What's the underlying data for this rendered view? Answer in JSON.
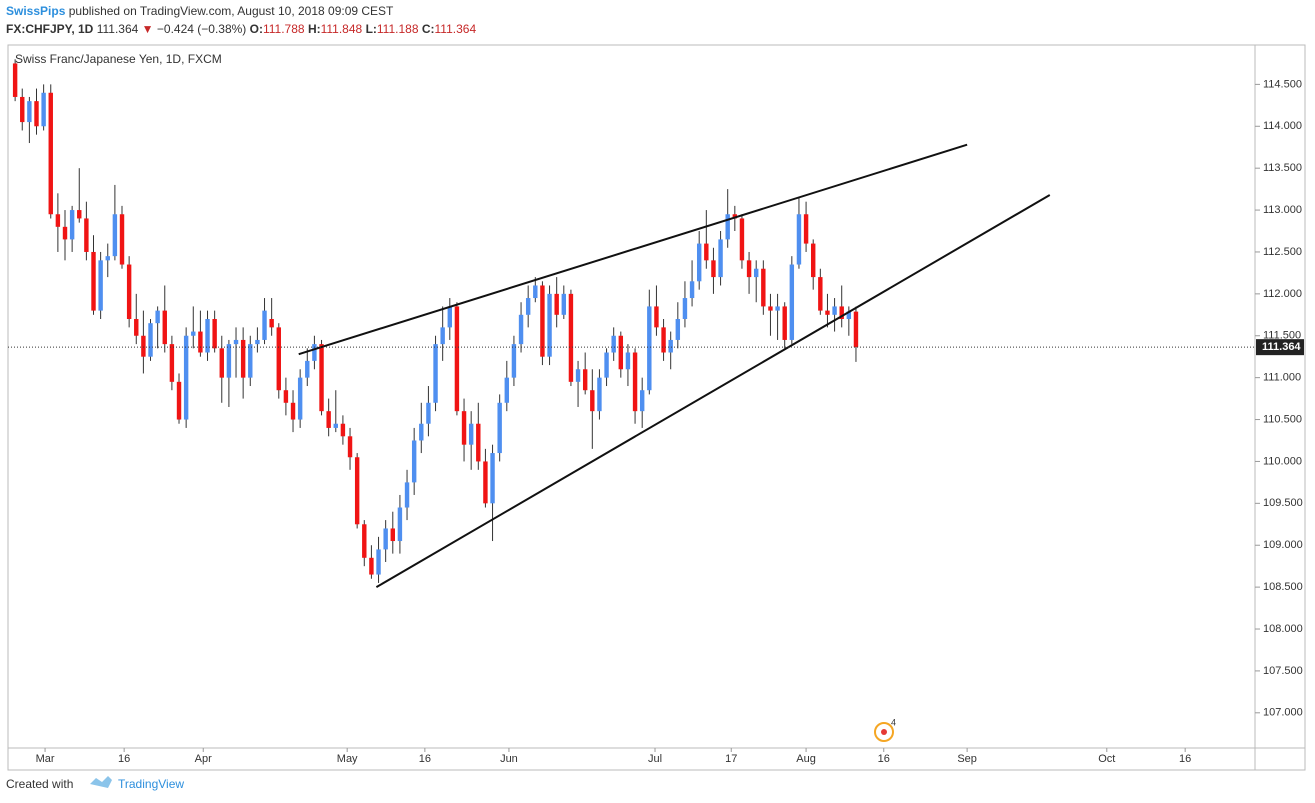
{
  "header": {
    "author": "SwissPips",
    "published": "published on TradingView.com, August 10, 2018 09:09 CEST",
    "symbol": "FX:CHFJPY, 1D",
    "last": 111.364,
    "arrow": "▼",
    "change": "−0.424 (−0.38%)",
    "open_label": "O:",
    "open": 111.788,
    "high_label": "H:",
    "high": 111.848,
    "low_label": "L:",
    "low": 111.188,
    "close_label": "C:",
    "close": 111.364
  },
  "chart_data": {
    "type": "candlestick",
    "title": "Swiss Franc/Japanese Yen, 1D, FXCM",
    "up_color": "#4f8ff0",
    "down_color": "#f01414",
    "ohlc": [
      [
        114.75,
        114.8,
        114.3,
        114.35
      ],
      [
        114.35,
        114.45,
        113.95,
        114.05
      ],
      [
        114.05,
        114.35,
        113.8,
        114.3
      ],
      [
        114.3,
        114.45,
        113.9,
        114.0
      ],
      [
        114.0,
        114.5,
        113.95,
        114.4
      ],
      [
        114.4,
        114.5,
        112.9,
        112.95
      ],
      [
        112.95,
        113.2,
        112.5,
        112.8
      ],
      [
        112.8,
        113.0,
        112.4,
        112.65
      ],
      [
        112.65,
        113.05,
        112.5,
        113.0
      ],
      [
        113.0,
        113.5,
        112.85,
        112.9
      ],
      [
        112.9,
        113.1,
        112.4,
        112.5
      ],
      [
        112.5,
        112.7,
        111.75,
        111.8
      ],
      [
        111.8,
        112.5,
        111.7,
        112.4
      ],
      [
        112.4,
        112.6,
        112.2,
        112.45
      ],
      [
        112.45,
        113.3,
        112.4,
        112.95
      ],
      [
        112.95,
        113.05,
        112.3,
        112.35
      ],
      [
        112.35,
        112.45,
        111.6,
        111.7
      ],
      [
        111.7,
        112.0,
        111.4,
        111.5
      ],
      [
        111.5,
        111.8,
        111.05,
        111.25
      ],
      [
        111.25,
        111.7,
        111.2,
        111.65
      ],
      [
        111.65,
        111.85,
        111.35,
        111.8
      ],
      [
        111.8,
        112.1,
        111.3,
        111.4
      ],
      [
        111.4,
        111.5,
        110.85,
        110.95
      ],
      [
        110.95,
        111.05,
        110.45,
        110.5
      ],
      [
        110.5,
        111.6,
        110.4,
        111.5
      ],
      [
        111.5,
        111.85,
        111.35,
        111.55
      ],
      [
        111.55,
        111.8,
        111.25,
        111.3
      ],
      [
        111.3,
        111.8,
        111.2,
        111.7
      ],
      [
        111.7,
        111.8,
        111.3,
        111.35
      ],
      [
        111.35,
        111.5,
        110.7,
        111.0
      ],
      [
        111.0,
        111.45,
        110.65,
        111.4
      ],
      [
        111.4,
        111.6,
        111.0,
        111.45
      ],
      [
        111.45,
        111.6,
        110.75,
        111.0
      ],
      [
        111.0,
        111.5,
        110.9,
        111.4
      ],
      [
        111.4,
        111.6,
        111.3,
        111.45
      ],
      [
        111.45,
        111.95,
        111.4,
        111.8
      ],
      [
        111.7,
        111.95,
        111.5,
        111.6
      ],
      [
        111.6,
        111.65,
        110.75,
        110.85
      ],
      [
        110.85,
        111.0,
        110.55,
        110.7
      ],
      [
        110.7,
        110.85,
        110.35,
        110.5
      ],
      [
        110.5,
        111.1,
        110.4,
        111.0
      ],
      [
        111.0,
        111.35,
        110.9,
        111.2
      ],
      [
        111.2,
        111.5,
        111.1,
        111.4
      ],
      [
        111.4,
        111.45,
        110.55,
        110.6
      ],
      [
        110.6,
        110.75,
        110.3,
        110.4
      ],
      [
        110.4,
        110.85,
        110.35,
        110.45
      ],
      [
        110.45,
        110.55,
        110.2,
        110.3
      ],
      [
        110.3,
        110.4,
        109.9,
        110.05
      ],
      [
        110.05,
        110.1,
        109.2,
        109.25
      ],
      [
        109.25,
        109.3,
        108.75,
        108.85
      ],
      [
        108.85,
        109.0,
        108.6,
        108.65
      ],
      [
        108.65,
        109.1,
        108.55,
        108.95
      ],
      [
        108.95,
        109.3,
        108.8,
        109.2
      ],
      [
        109.2,
        109.4,
        108.9,
        109.05
      ],
      [
        109.05,
        109.6,
        108.9,
        109.45
      ],
      [
        109.45,
        109.9,
        109.3,
        109.75
      ],
      [
        109.75,
        110.4,
        109.6,
        110.25
      ],
      [
        110.25,
        110.7,
        110.1,
        110.45
      ],
      [
        110.45,
        110.9,
        110.3,
        110.7
      ],
      [
        110.7,
        111.5,
        110.6,
        111.4
      ],
      [
        111.4,
        111.85,
        111.2,
        111.6
      ],
      [
        111.6,
        111.95,
        111.45,
        111.85
      ],
      [
        111.85,
        111.9,
        110.55,
        110.6
      ],
      [
        110.6,
        110.75,
        110.0,
        110.2
      ],
      [
        110.2,
        110.6,
        109.9,
        110.45
      ],
      [
        110.45,
        110.7,
        109.9,
        110.0
      ],
      [
        110.0,
        110.15,
        109.45,
        109.5
      ],
      [
        109.5,
        110.2,
        109.05,
        110.1
      ],
      [
        110.1,
        110.8,
        110.0,
        110.7
      ],
      [
        110.7,
        111.2,
        110.6,
        111.0
      ],
      [
        111.0,
        111.5,
        110.9,
        111.4
      ],
      [
        111.4,
        111.9,
        111.3,
        111.75
      ],
      [
        111.75,
        112.1,
        111.6,
        111.95
      ],
      [
        111.95,
        112.2,
        111.9,
        112.1
      ],
      [
        112.1,
        112.15,
        111.15,
        111.25
      ],
      [
        111.25,
        112.1,
        111.15,
        112.0
      ],
      [
        112.0,
        112.2,
        111.6,
        111.75
      ],
      [
        111.75,
        112.1,
        111.7,
        112.0
      ],
      [
        112.0,
        112.05,
        110.9,
        110.95
      ],
      [
        110.95,
        111.2,
        110.65,
        111.1
      ],
      [
        111.1,
        111.3,
        110.8,
        110.85
      ],
      [
        110.85,
        111.1,
        110.15,
        110.6
      ],
      [
        110.6,
        111.1,
        110.5,
        111.0
      ],
      [
        111.0,
        111.35,
        110.9,
        111.3
      ],
      [
        111.3,
        111.6,
        111.2,
        111.5
      ],
      [
        111.5,
        111.55,
        111.0,
        111.1
      ],
      [
        111.1,
        111.4,
        110.9,
        111.3
      ],
      [
        111.3,
        111.35,
        110.45,
        110.6
      ],
      [
        110.6,
        111.0,
        110.4,
        110.85
      ],
      [
        110.85,
        112.05,
        110.8,
        111.85
      ],
      [
        111.85,
        112.1,
        111.5,
        111.6
      ],
      [
        111.6,
        111.7,
        111.2,
        111.3
      ],
      [
        111.3,
        111.55,
        111.1,
        111.45
      ],
      [
        111.45,
        111.9,
        111.35,
        111.7
      ],
      [
        111.7,
        112.15,
        111.6,
        111.95
      ],
      [
        111.95,
        112.4,
        111.85,
        112.15
      ],
      [
        112.15,
        112.75,
        112.05,
        112.6
      ],
      [
        112.6,
        113.0,
        112.3,
        112.4
      ],
      [
        112.4,
        112.55,
        112.0,
        112.2
      ],
      [
        112.2,
        112.75,
        112.1,
        112.65
      ],
      [
        112.65,
        113.25,
        112.55,
        112.95
      ],
      [
        112.95,
        113.05,
        112.75,
        112.9
      ],
      [
        112.9,
        112.95,
        112.3,
        112.4
      ],
      [
        112.4,
        112.5,
        112.0,
        112.2
      ],
      [
        112.2,
        112.4,
        111.9,
        112.3
      ],
      [
        112.3,
        112.4,
        111.75,
        111.85
      ],
      [
        111.85,
        112.0,
        111.5,
        111.8
      ],
      [
        111.8,
        112.0,
        111.45,
        111.85
      ],
      [
        111.85,
        111.9,
        111.35,
        111.45
      ],
      [
        111.45,
        112.45,
        111.4,
        112.35
      ],
      [
        112.35,
        113.15,
        112.3,
        112.95
      ],
      [
        112.95,
        113.1,
        112.5,
        112.6
      ],
      [
        112.6,
        112.65,
        112.05,
        112.2
      ],
      [
        112.2,
        112.3,
        111.75,
        111.8
      ],
      [
        111.8,
        112.0,
        111.6,
        111.75
      ],
      [
        111.75,
        111.95,
        111.55,
        111.85
      ],
      [
        111.85,
        112.1,
        111.6,
        111.7
      ],
      [
        111.7,
        111.85,
        111.5,
        111.79
      ],
      [
        111.788,
        111.848,
        111.188,
        111.364
      ]
    ],
    "xlim": [
      -1,
      174
    ],
    "xticks": [
      {
        "value": 4.2,
        "label": "Mar"
      },
      {
        "value": 15.3,
        "label": "16"
      },
      {
        "value": 26.4,
        "label": "Apr"
      },
      {
        "value": 46.6,
        "label": "May"
      },
      {
        "value": 57.5,
        "label": "16"
      },
      {
        "value": 69.3,
        "label": "Jun"
      },
      {
        "value": 89.8,
        "label": "Jul"
      },
      {
        "value": 100.5,
        "label": "17"
      },
      {
        "value": 111.0,
        "label": "Aug"
      },
      {
        "value": 121.9,
        "label": "16"
      },
      {
        "value": 133.6,
        "label": "Sep"
      },
      {
        "value": 153.2,
        "label": "Oct"
      },
      {
        "value": 164.2,
        "label": "16"
      }
    ],
    "ylim": [
      106.58,
      114.97
    ],
    "yticks": [
      {
        "value": 107,
        "label": "107.000"
      },
      {
        "value": 107.5,
        "label": "107.500"
      },
      {
        "value": 108,
        "label": "108.000"
      },
      {
        "value": 108.5,
        "label": "108.500"
      },
      {
        "value": 109,
        "label": "109.000"
      },
      {
        "value": 109.5,
        "label": "109.500"
      },
      {
        "value": 110,
        "label": "110.000"
      },
      {
        "value": 110.5,
        "label": "110.500"
      },
      {
        "value": 111,
        "label": "111.000"
      },
      {
        "value": 111.5,
        "label": "111.500"
      },
      {
        "value": 112,
        "label": "112.000"
      },
      {
        "value": 112.5,
        "label": "112.500"
      },
      {
        "value": 113,
        "label": "113.000"
      },
      {
        "value": 113.5,
        "label": "113.500"
      },
      {
        "value": 114,
        "label": "114.000"
      },
      {
        "value": 114.5,
        "label": "114.500"
      }
    ],
    "trendlines": [
      {
        "x": [
          39.8,
          133.6
        ],
        "y": [
          111.28,
          113.78
        ]
      },
      {
        "x": [
          50.7,
          145.2
        ],
        "y": [
          108.5,
          113.18
        ]
      }
    ],
    "events_badge": 4
  },
  "footer": {
    "created": "Created with",
    "brand": "TradingView"
  }
}
